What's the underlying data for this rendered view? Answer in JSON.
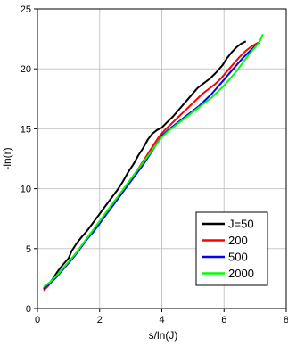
{
  "chart_data": {
    "type": "line",
    "title": "",
    "xlabel": "s/ln(J)",
    "ylabel": "-ln(r)",
    "xlim": [
      0,
      8
    ],
    "ylim": [
      0,
      25
    ],
    "xticks": [
      "0",
      "2",
      "4",
      "6",
      "8"
    ],
    "yticks": [
      "0",
      "5",
      "10",
      "15",
      "20",
      "25"
    ],
    "grid": true,
    "legend": "bottom-right",
    "series": [
      {
        "name": "J=50",
        "color": "#000000",
        "x": [
          0.2,
          0.35,
          0.5,
          0.65,
          0.8,
          1.0,
          1.1,
          1.25,
          1.4,
          1.6,
          1.8,
          2.0,
          2.2,
          2.4,
          2.6,
          2.75,
          2.9,
          3.1,
          3.25,
          3.4,
          3.55,
          3.7,
          3.85,
          4.0,
          4.15,
          4.35,
          4.55,
          4.75,
          4.95,
          5.15,
          5.35,
          5.55,
          5.75,
          5.95,
          6.1,
          6.25,
          6.4,
          6.55,
          6.7
        ],
        "y": [
          1.6,
          2.0,
          2.5,
          3.1,
          3.6,
          4.2,
          4.8,
          5.4,
          5.9,
          6.5,
          7.2,
          7.9,
          8.6,
          9.3,
          10.0,
          10.6,
          11.3,
          12.1,
          12.8,
          13.4,
          14.1,
          14.6,
          14.9,
          15.1,
          15.5,
          16.0,
          16.6,
          17.2,
          17.8,
          18.4,
          18.8,
          19.2,
          19.7,
          20.3,
          20.9,
          21.4,
          21.8,
          22.1,
          22.3
        ]
      },
      {
        "name": "200",
        "color": "#ff0000",
        "x": [
          0.2,
          0.35,
          0.5,
          0.7,
          0.9,
          1.1,
          1.3,
          1.5,
          1.7,
          1.9,
          2.1,
          2.3,
          2.5,
          2.7,
          2.9,
          3.1,
          3.3,
          3.5,
          3.7,
          3.9,
          4.1,
          4.3,
          4.5,
          4.7,
          4.9,
          5.1,
          5.3,
          5.5,
          5.7,
          5.9,
          6.1,
          6.3,
          6.5,
          6.7,
          6.9,
          7.1
        ],
        "y": [
          1.5,
          1.9,
          2.4,
          2.9,
          3.5,
          4.1,
          4.8,
          5.5,
          6.2,
          6.9,
          7.6,
          8.3,
          9.0,
          9.7,
          10.4,
          11.1,
          11.9,
          12.7,
          13.5,
          14.3,
          14.9,
          15.4,
          15.9,
          16.4,
          16.9,
          17.4,
          17.9,
          18.3,
          18.7,
          19.2,
          19.8,
          20.4,
          21.0,
          21.5,
          21.9,
          22.2
        ]
      },
      {
        "name": "500",
        "color": "#0000ff",
        "x": [
          0.2,
          0.4,
          0.6,
          0.8,
          1.0,
          1.2,
          1.4,
          1.6,
          1.8,
          2.0,
          2.2,
          2.4,
          2.6,
          2.8,
          3.0,
          3.2,
          3.4,
          3.6,
          3.8,
          4.0,
          4.2,
          4.4,
          4.6,
          4.8,
          5.0,
          5.2,
          5.4,
          5.6,
          5.8,
          6.0,
          6.2,
          6.4,
          6.6,
          6.8,
          7.0,
          7.15
        ],
        "y": [
          1.7,
          2.1,
          2.6,
          3.2,
          3.8,
          4.4,
          5.1,
          5.8,
          6.4,
          7.1,
          7.8,
          8.5,
          9.2,
          9.9,
          10.6,
          11.3,
          12.0,
          12.8,
          13.6,
          14.4,
          14.9,
          15.3,
          15.7,
          16.1,
          16.5,
          16.9,
          17.4,
          17.9,
          18.5,
          19.1,
          19.7,
          20.3,
          20.9,
          21.4,
          21.9,
          22.2
        ]
      },
      {
        "name": "2000",
        "color": "#00ff00",
        "x": [
          0.2,
          0.4,
          0.6,
          0.8,
          1.0,
          1.2,
          1.4,
          1.6,
          1.8,
          2.0,
          2.2,
          2.4,
          2.6,
          2.8,
          3.0,
          3.2,
          3.4,
          3.6,
          3.8,
          4.0,
          4.2,
          4.4,
          4.6,
          4.8,
          5.0,
          5.2,
          5.4,
          5.6,
          5.8,
          6.0,
          6.2,
          6.4,
          6.6,
          6.8,
          7.0,
          7.15,
          7.25
        ],
        "y": [
          1.8,
          2.2,
          2.7,
          3.3,
          3.9,
          4.5,
          5.2,
          5.9,
          6.6,
          7.3,
          8.0,
          8.7,
          9.4,
          10.1,
          10.8,
          11.5,
          12.2,
          12.9,
          13.6,
          14.3,
          14.8,
          15.2,
          15.6,
          16.0,
          16.4,
          16.8,
          17.2,
          17.6,
          18.1,
          18.6,
          19.2,
          19.8,
          20.5,
          21.2,
          21.8,
          22.3,
          22.9
        ]
      }
    ]
  }
}
